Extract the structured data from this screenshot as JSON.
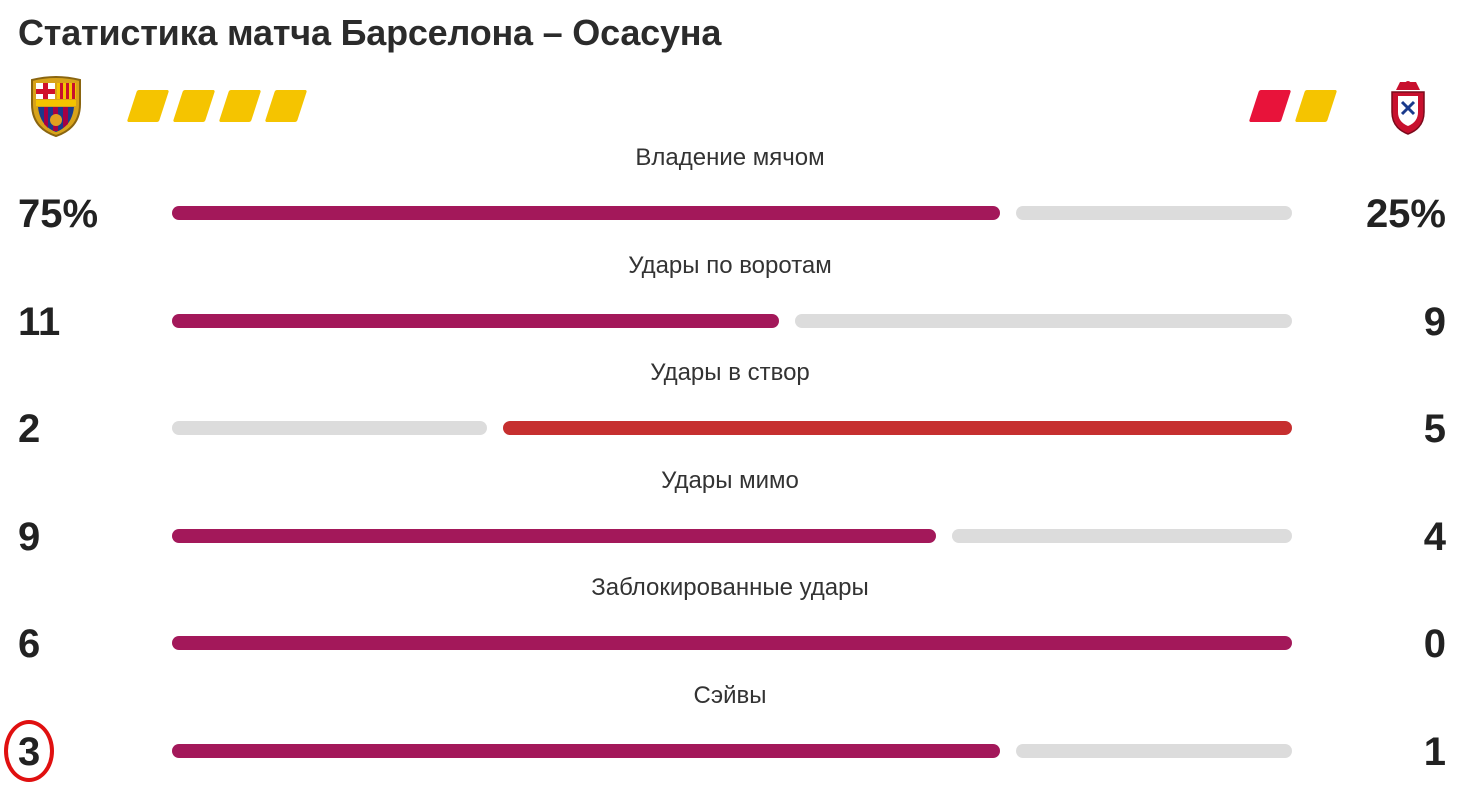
{
  "title": "Статистика матча Барселона – Осасуна",
  "home": {
    "crest_icon": "barcelona-crest-icon",
    "cards": [
      {
        "type": "yellow",
        "color": "#f5c400"
      },
      {
        "type": "yellow",
        "color": "#f5c400"
      },
      {
        "type": "yellow",
        "color": "#f5c400"
      },
      {
        "type": "yellow",
        "color": "#f5c400"
      }
    ]
  },
  "away": {
    "crest_icon": "osasuna-crest-icon",
    "cards": [
      {
        "type": "red",
        "color": "#e8133a"
      },
      {
        "type": "yellow",
        "color": "#f5c400"
      }
    ]
  },
  "colors": {
    "home_bar": "#a3185a",
    "away_bar": "#c62f2f",
    "track": "#dcdcdc",
    "highlight_ring": "#e01010"
  },
  "stats": [
    {
      "label": "Владение мячом",
      "home": "75%",
      "away": "25%",
      "home_value": 75,
      "away_value": 25,
      "leader": "home"
    },
    {
      "label": "Удары по воротам",
      "home": "11",
      "away": "9",
      "home_value": 11,
      "away_value": 9,
      "leader": "home"
    },
    {
      "label": "Удары в створ",
      "home": "2",
      "away": "5",
      "home_value": 2,
      "away_value": 5,
      "leader": "away"
    },
    {
      "label": "Удары мимо",
      "home": "9",
      "away": "4",
      "home_value": 9,
      "away_value": 4,
      "leader": "home"
    },
    {
      "label": "Заблокированные удары",
      "home": "6",
      "away": "0",
      "home_value": 6,
      "away_value": 0,
      "leader": "home"
    },
    {
      "label": "Сэйвы",
      "home": "3",
      "away": "1",
      "home_value": 3,
      "away_value": 1,
      "leader": "home",
      "highlighted": true
    }
  ]
}
